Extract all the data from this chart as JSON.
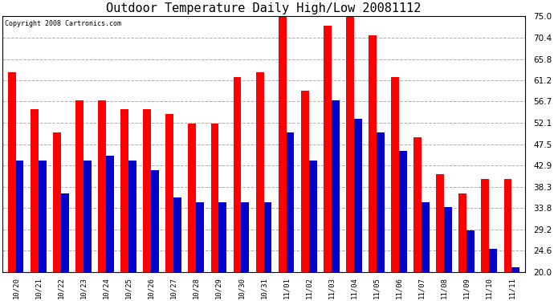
{
  "title": "Outdoor Temperature Daily High/Low 20081112",
  "copyright": "Copyright 2008 Cartronics.com",
  "categories": [
    "10/20",
    "10/21",
    "10/22",
    "10/23",
    "10/24",
    "10/25",
    "10/26",
    "10/27",
    "10/28",
    "10/29",
    "10/30",
    "10/31",
    "11/01",
    "11/02",
    "11/03",
    "11/04",
    "11/05",
    "11/06",
    "11/07",
    "11/08",
    "11/09",
    "11/10",
    "11/11"
  ],
  "highs": [
    63,
    55,
    50,
    57,
    57,
    55,
    55,
    54,
    52,
    52,
    62,
    63,
    75,
    59,
    73,
    76,
    71,
    62,
    49,
    41,
    37,
    40,
    40
  ],
  "lows": [
    44,
    44,
    37,
    44,
    45,
    44,
    42,
    36,
    35,
    35,
    35,
    35,
    50,
    44,
    57,
    53,
    50,
    46,
    35,
    34,
    29,
    25,
    21
  ],
  "high_color": "#ff0000",
  "low_color": "#0000cc",
  "bg_color": "#ffffff",
  "grid_color": "#999999",
  "title_fontsize": 11,
  "yticks": [
    20.0,
    24.6,
    29.2,
    33.8,
    38.3,
    42.9,
    47.5,
    52.1,
    56.7,
    61.2,
    65.8,
    70.4,
    75.0
  ],
  "ymin": 20.0,
  "ymax": 75.0,
  "bar_bottom": 20.0,
  "bar_width": 0.35
}
